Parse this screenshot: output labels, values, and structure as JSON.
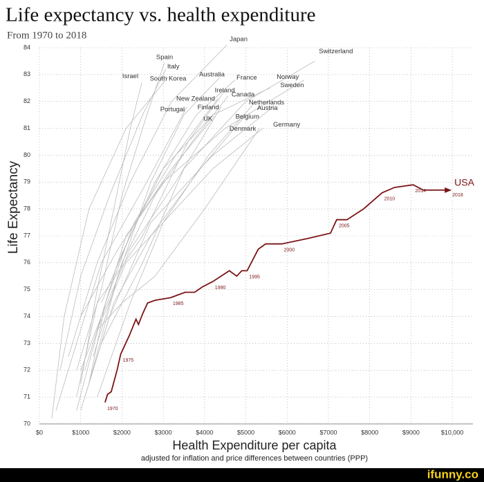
{
  "chart_data": {
    "type": "line",
    "title": "Life expectancy vs. health expenditure",
    "subtitle": "From 1970 to 2018",
    "y_label": "Life Expectancy",
    "x_label": "Health Expenditure per capita",
    "x_sublabel": "adjusted for inflation and price differences between countries (PPP)",
    "watermark": "ifunny.co",
    "xlim": [
      0,
      10500
    ],
    "ylim": [
      70,
      84
    ],
    "grid": true,
    "xticks": [
      {
        "value": 0,
        "label": "$0"
      },
      {
        "value": 1000,
        "label": "$1000"
      },
      {
        "value": 2000,
        "label": "$2000"
      },
      {
        "value": 3000,
        "label": "$3000"
      },
      {
        "value": 4000,
        "label": "$4000"
      },
      {
        "value": 5000,
        "label": "$5000"
      },
      {
        "value": 6000,
        "label": "$6000"
      },
      {
        "value": 7000,
        "label": "$7000"
      },
      {
        "value": 8000,
        "label": "$8000"
      },
      {
        "value": 9000,
        "label": "$9000"
      },
      {
        "value": 10000,
        "label": "$10,000"
      }
    ],
    "yticks": [
      70,
      71,
      72,
      73,
      74,
      75,
      76,
      77,
      78,
      79,
      80,
      81,
      82,
      83,
      84
    ],
    "series": [
      {
        "name": "Japan",
        "color": "#bbbbbb",
        "x": [
          700,
          1400,
          2200,
          3200,
          4540
        ],
        "values": [
          72.5,
          76,
          79,
          82,
          84.1
        ]
      },
      {
        "name": "Switzerland",
        "color": "#bbbbbb",
        "x": [
          1500,
          2500,
          3500,
          5000,
          6670
        ],
        "values": [
          73,
          76,
          79.5,
          82,
          83.5
        ]
      },
      {
        "name": "Spain",
        "color": "#bbbbbb",
        "x": [
          500,
          1000,
          1700,
          2500,
          3065
        ],
        "values": [
          72,
          75.5,
          78.5,
          81.5,
          83.2
        ]
      },
      {
        "name": "Italy",
        "color": "#bbbbbb",
        "x": [
          900,
          1500,
          2000,
          2600,
          3030
        ],
        "values": [
          72,
          75,
          78.5,
          81.5,
          83.45
        ]
      },
      {
        "name": "Israel",
        "color": "#bbbbbb",
        "x": [
          1000,
          1400,
          1800,
          2200,
          2480
        ],
        "values": [
          71.5,
          75,
          78,
          81,
          82.7
        ]
      },
      {
        "name": "South Korea",
        "color": "#bbbbbb",
        "x": [
          300,
          600,
          1200,
          2100,
          3115
        ],
        "values": [
          70.2,
          74,
          78,
          81,
          82.9
        ]
      },
      {
        "name": "Australia",
        "color": "#bbbbbb",
        "x": [
          1200,
          1900,
          2700,
          3500,
          4370
        ],
        "values": [
          71.5,
          75.5,
          79,
          81.5,
          82.9
        ]
      },
      {
        "name": "France",
        "color": "#bbbbbb",
        "x": [
          1100,
          1900,
          2800,
          3800,
          4740
        ],
        "values": [
          72,
          76,
          79,
          81.5,
          82.8
        ]
      },
      {
        "name": "Norway",
        "color": "#bbbbbb",
        "x": [
          1000,
          1900,
          3000,
          4500,
          6415
        ],
        "values": [
          74,
          76.5,
          79,
          81,
          82.8
        ]
      },
      {
        "name": "Sweden",
        "color": "#bbbbbb",
        "x": [
          1500,
          2200,
          3000,
          4200,
          5580
        ],
        "values": [
          74.5,
          77,
          79.5,
          81.5,
          82.5
        ]
      },
      {
        "name": "Ireland",
        "color": "#bbbbbb",
        "x": [
          900,
          1400,
          2500,
          3600,
          4490
        ],
        "values": [
          71,
          74.5,
          77,
          80.5,
          82.4
        ]
      },
      {
        "name": "New Zealand",
        "color": "#bbbbbb",
        "x": [
          1200,
          1600,
          2300,
          3300,
          4320
        ],
        "values": [
          71.5,
          74.5,
          77.5,
          80,
          82.1
        ]
      },
      {
        "name": "Canada",
        "color": "#bbbbbb",
        "x": [
          1300,
          2000,
          2800,
          3700,
          4570
        ],
        "values": [
          72.5,
          76,
          78.5,
          80.5,
          82.2
        ]
      },
      {
        "name": "Netherlands",
        "color": "#bbbbbb",
        "x": [
          1400,
          2100,
          3000,
          4100,
          5240
        ],
        "values": [
          73.5,
          76,
          77.5,
          80,
          82.0
        ]
      },
      {
        "name": "Austria",
        "color": "#bbbbbb",
        "x": [
          1000,
          1700,
          2700,
          4200,
          5660
        ],
        "values": [
          70.5,
          74,
          77.5,
          80,
          81.8
        ]
      },
      {
        "name": "Portugal",
        "color": "#bbbbbb",
        "x": [
          400,
          900,
          1500,
          2600,
          3570
        ],
        "values": [
          70.5,
          73,
          76,
          79,
          81.8
        ]
      },
      {
        "name": "Finland",
        "color": "#bbbbbb",
        "x": [
          900,
          1500,
          2200,
          3300,
          4400
        ],
        "values": [
          70.5,
          74,
          76.5,
          79,
          81.8
        ]
      },
      {
        "name": "Belgium",
        "color": "#bbbbbb",
        "x": [
          1100,
          1800,
          2700,
          3900,
          5000
        ],
        "values": [
          71,
          74.5,
          77,
          79.5,
          81.5
        ]
      },
      {
        "name": "UK",
        "color": "#bbbbbb",
        "x": [
          1000,
          1500,
          2100,
          3200,
          4240
        ],
        "values": [
          72,
          74,
          77,
          79.5,
          81.45
        ]
      },
      {
        "name": "Germany",
        "color": "#bbbbbb",
        "x": [
          1400,
          2200,
          3000,
          4200,
          5410
        ],
        "values": [
          71,
          74.5,
          77.5,
          79.5,
          81.0
        ]
      },
      {
        "name": "Denmark",
        "color": "#bbbbbb",
        "x": [
          1400,
          2000,
          2800,
          4000,
          5330
        ],
        "values": [
          73.5,
          74.5,
          75.5,
          78,
          81.0
        ]
      },
      {
        "name": "USA",
        "color": "#7b1416",
        "x": [
          1590,
          1650,
          1740,
          1880,
          1970,
          2180,
          2340,
          2400,
          2500,
          2620,
          2800,
          3180,
          3530,
          3760,
          3950,
          4200,
          4600,
          4780,
          4900,
          5030,
          5300,
          5480,
          5870,
          6500,
          7050,
          7200,
          7450,
          7850,
          8300,
          8600,
          9050,
          9300,
          9600,
          9950
        ],
        "values": [
          70.8,
          71.1,
          71.2,
          72.0,
          72.6,
          73.3,
          73.9,
          73.7,
          74.1,
          74.5,
          74.6,
          74.7,
          74.9,
          74.9,
          75.1,
          75.3,
          75.7,
          75.5,
          75.7,
          75.7,
          76.5,
          76.7,
          76.7,
          76.9,
          77.1,
          77.6,
          77.6,
          78.0,
          78.6,
          78.8,
          78.9,
          78.7,
          78.7,
          78.7
        ],
        "point_labels": [
          "1970",
          null,
          null,
          null,
          "1975",
          null,
          null,
          null,
          null,
          null,
          null,
          "1985",
          null,
          null,
          null,
          "1990",
          null,
          null,
          null,
          "1995",
          null,
          null,
          "2000",
          null,
          null,
          "2005",
          null,
          null,
          "2010",
          null,
          "2014",
          null,
          null,
          "2018"
        ]
      }
    ]
  }
}
